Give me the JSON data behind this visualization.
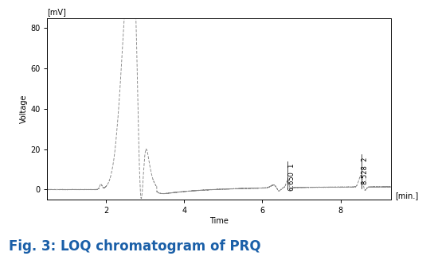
{
  "title": "Fig. 3: LOQ chromatogram of PRQ",
  "xlabel": "Time",
  "ylabel": "Voltage",
  "xunit": "[min.]",
  "yunit": "[mV]",
  "xlim": [
    0.5,
    9.3
  ],
  "ylim": [
    -5,
    85
  ],
  "yticks": [
    0,
    20,
    40,
    60,
    80
  ],
  "xticks": [
    2,
    4,
    6,
    8
  ],
  "peak1_time": 6.65,
  "peak1_label": "6.650  1",
  "peak2_time": 8.528,
  "peak2_label": "8.528  2",
  "line_color": "#888888",
  "bg_color": "#ffffff",
  "title_color": "#1a5fa8",
  "title_fontsize": 12,
  "axis_label_fontsize": 7,
  "tick_fontsize": 7,
  "annotation_fontsize": 6
}
